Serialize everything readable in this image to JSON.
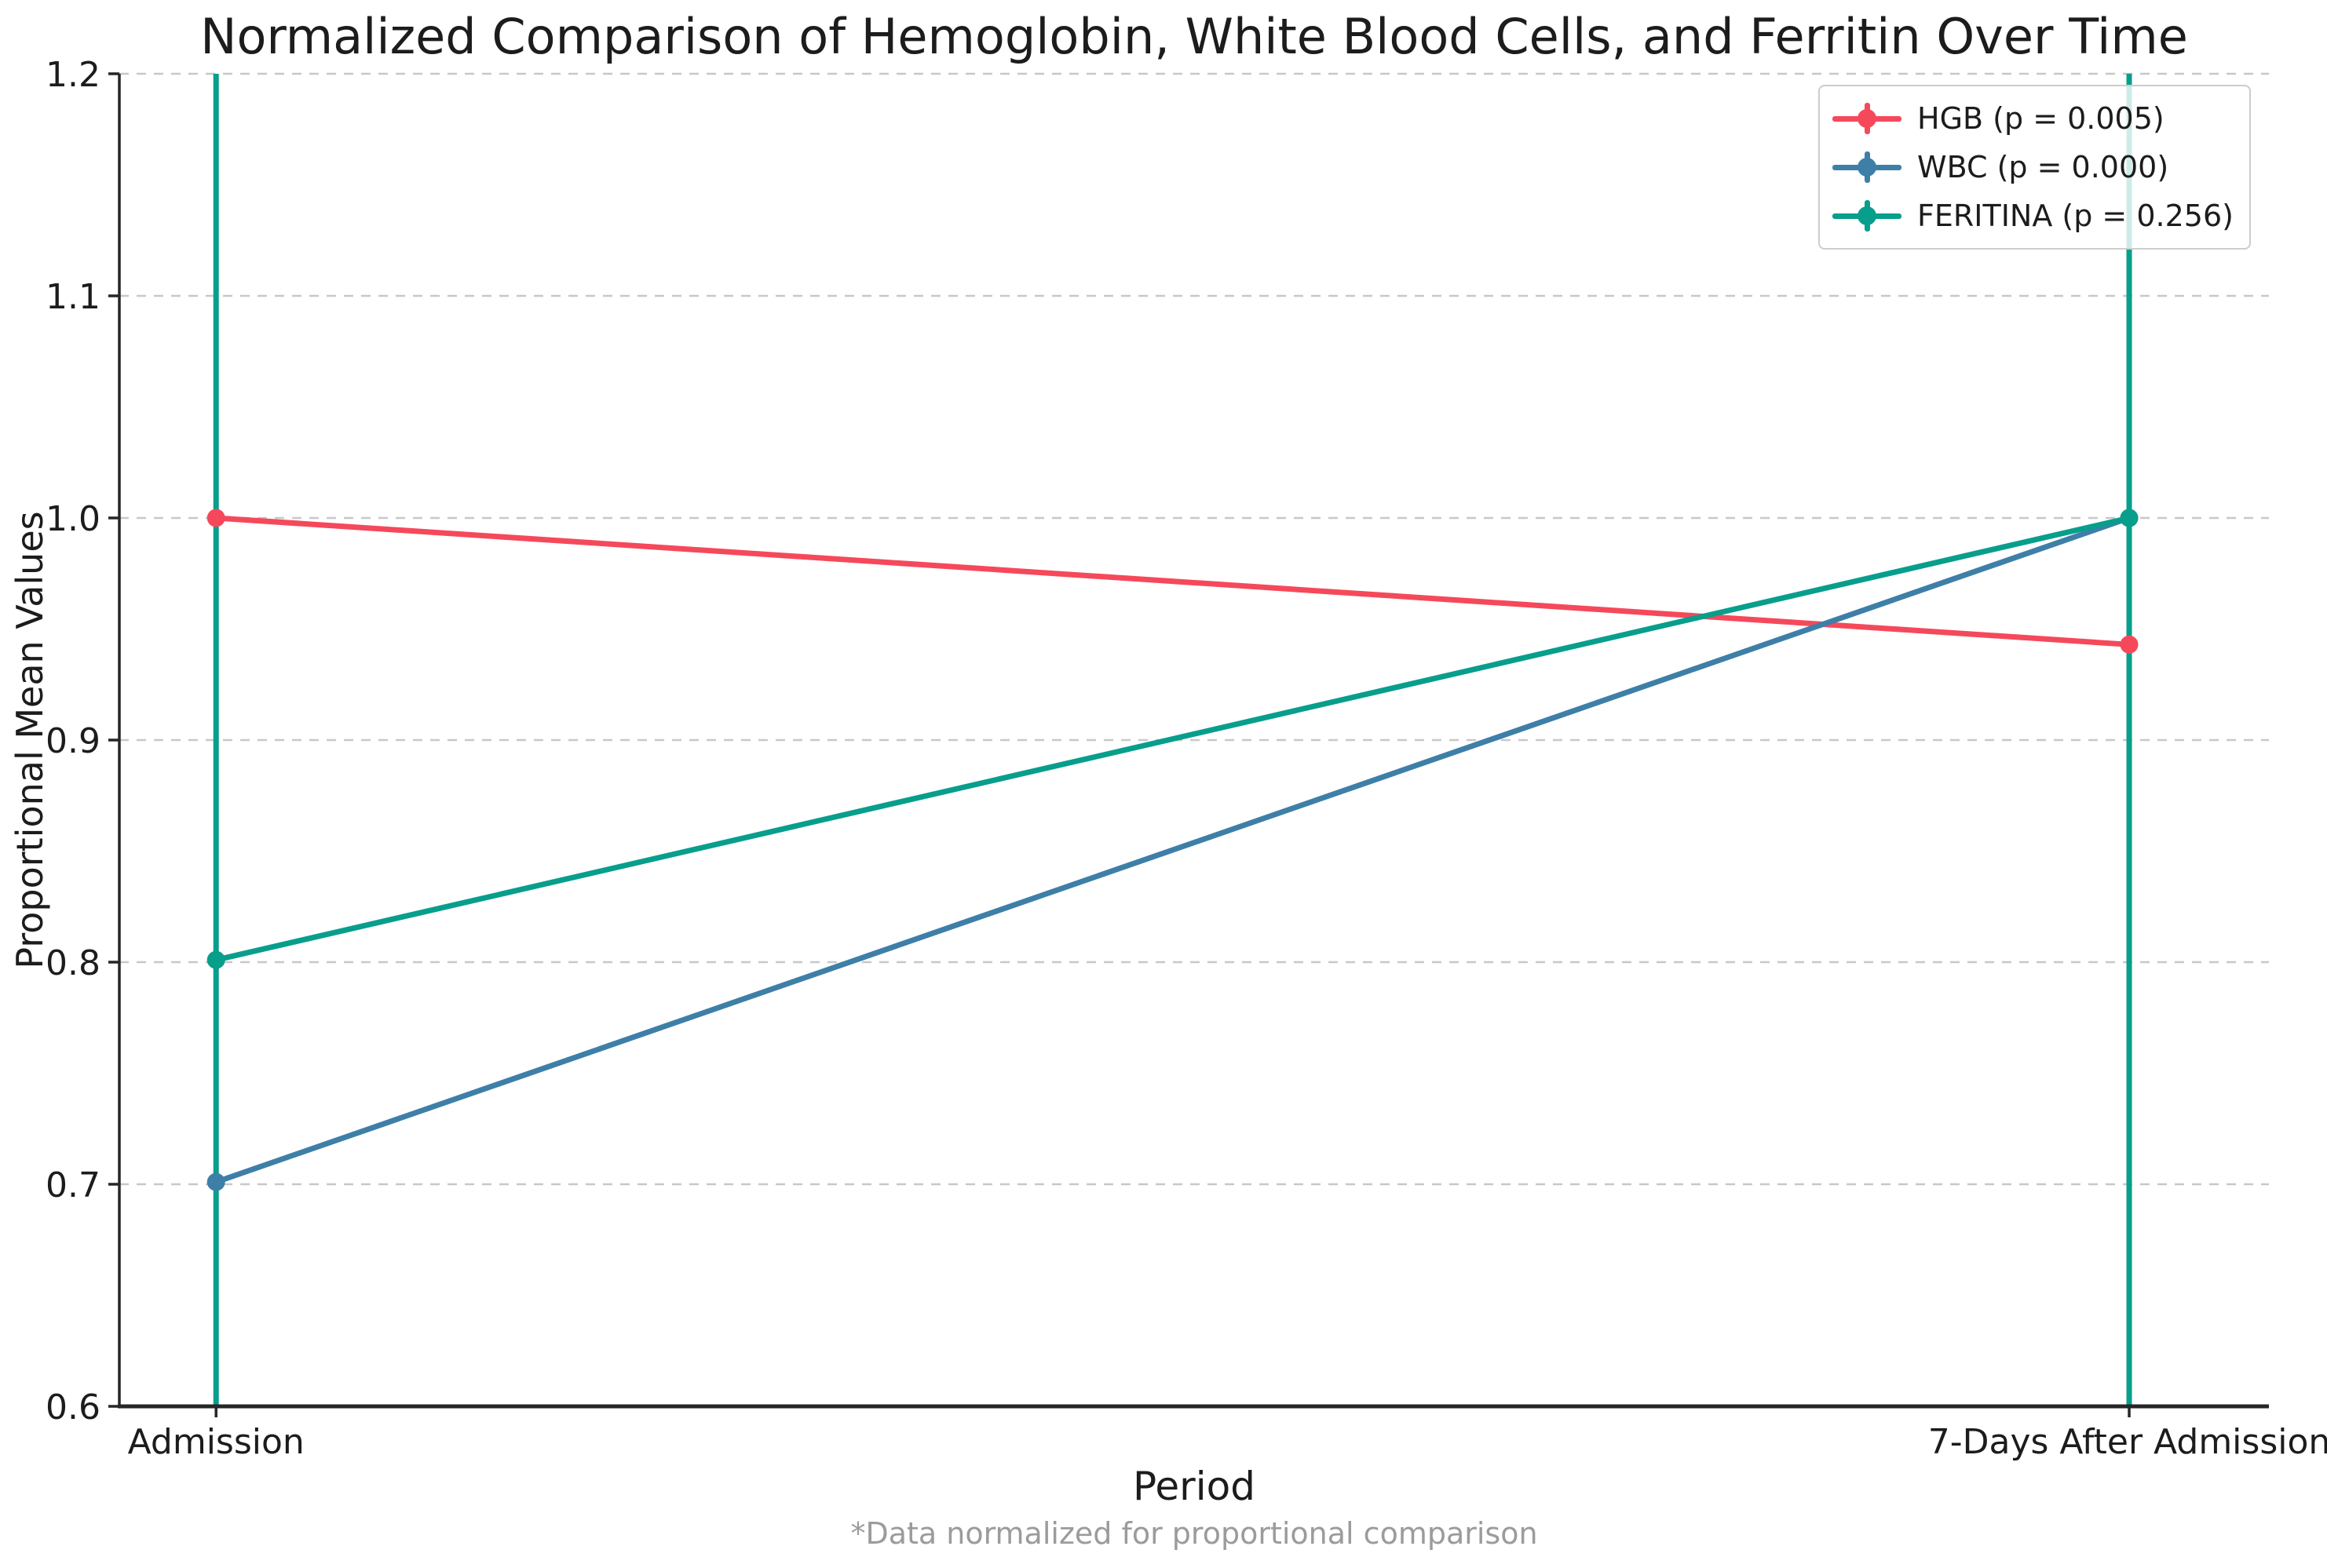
{
  "figure": {
    "title": "Normalized Comparison of Hemoglobin, White Blood Cells, and Ferritin Over Time",
    "footnote": "*Data normalized for proportional comparison"
  },
  "chart_data": {
    "type": "line",
    "title": "Normalized Comparison of Hemoglobin, White Blood Cells, and Ferritin Over Time",
    "xlabel": "Period",
    "ylabel": "Proportional Mean Values",
    "categories": [
      "Admission",
      "7-Days After Admission"
    ],
    "ylim": [
      0.6,
      1.2
    ],
    "yticks": [
      0.6,
      0.7,
      0.8,
      0.9,
      1.0,
      1.1,
      1.2
    ],
    "grid": {
      "horizontal": true,
      "style": "dashed",
      "color": "#c8c8c8"
    },
    "legend": {
      "position": "top-right"
    },
    "series": [
      {
        "name": "HGB",
        "label": "HGB (p = 0.005)",
        "p_value": 0.005,
        "color": "#F5495B",
        "values": [
          1.0,
          0.943
        ],
        "error_bar_full_height": false
      },
      {
        "name": "WBC",
        "label": "WBC (p = 0.000)",
        "p_value": 0.0,
        "color": "#3E7FA8",
        "values": [
          0.701,
          1.0
        ],
        "error_bar_full_height": false
      },
      {
        "name": "FERITINA",
        "label": "FERITINA (p = 0.256)",
        "p_value": 0.256,
        "color": "#089E8C",
        "values": [
          0.801,
          1.0
        ],
        "error_bar_full_height": true
      }
    ],
    "error_bars_note": "FERITINA error bars span the full y-axis range (clipped at plot top and bottom) at both time points; HGB and WBC error bars are too small to be visible"
  }
}
